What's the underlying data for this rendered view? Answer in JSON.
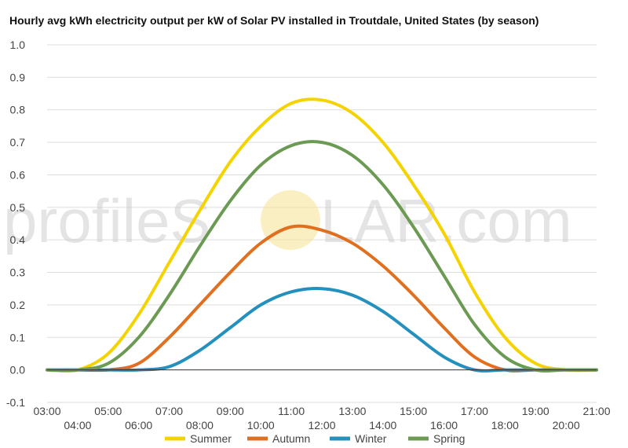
{
  "chart_data": {
    "type": "line",
    "title": "Hourly avg kWh electricity output per kW of Solar PV installed in Troutdale, United States (by season)",
    "xlabel": "",
    "ylabel": "",
    "ylim": [
      -0.1,
      1.0
    ],
    "yticks": [
      "-0.1",
      "0.0",
      "0.1",
      "0.2",
      "0.3",
      "0.4",
      "0.5",
      "0.6",
      "0.7",
      "0.8",
      "0.9",
      "1.0"
    ],
    "categories": [
      "03:00",
      "04:00",
      "05:00",
      "06:00",
      "07:00",
      "08:00",
      "09:00",
      "10:00",
      "11:00",
      "12:00",
      "13:00",
      "14:00",
      "15:00",
      "16:00",
      "17:00",
      "18:00",
      "19:00",
      "20:00",
      "21:00"
    ],
    "series": [
      {
        "name": "Summer",
        "color": "#f5d300",
        "values": [
          0,
          0,
          0.05,
          0.17,
          0.33,
          0.49,
          0.64,
          0.75,
          0.82,
          0.83,
          0.79,
          0.7,
          0.57,
          0.42,
          0.24,
          0.1,
          0.02,
          0,
          0
        ]
      },
      {
        "name": "Autumn",
        "color": "#e07020",
        "values": [
          0,
          0,
          0,
          0.02,
          0.1,
          0.2,
          0.3,
          0.39,
          0.44,
          0.43,
          0.39,
          0.32,
          0.23,
          0.13,
          0.04,
          0,
          0,
          0,
          0
        ]
      },
      {
        "name": "Winter",
        "color": "#2390bd",
        "values": [
          0,
          0,
          0,
          0,
          0.01,
          0.06,
          0.13,
          0.2,
          0.24,
          0.25,
          0.23,
          0.18,
          0.11,
          0.04,
          0,
          0,
          0,
          0,
          0
        ]
      },
      {
        "name": "Spring",
        "color": "#6b9a52",
        "values": [
          0,
          0,
          0.02,
          0.1,
          0.23,
          0.38,
          0.52,
          0.63,
          0.69,
          0.7,
          0.66,
          0.57,
          0.44,
          0.29,
          0.14,
          0.04,
          0,
          0,
          0
        ]
      }
    ],
    "legend_position": "bottom",
    "grid": true
  },
  "watermark": {
    "text_left": "profileS",
    "text_right": "LAR.com",
    "sun_color": "#f7e59a"
  }
}
